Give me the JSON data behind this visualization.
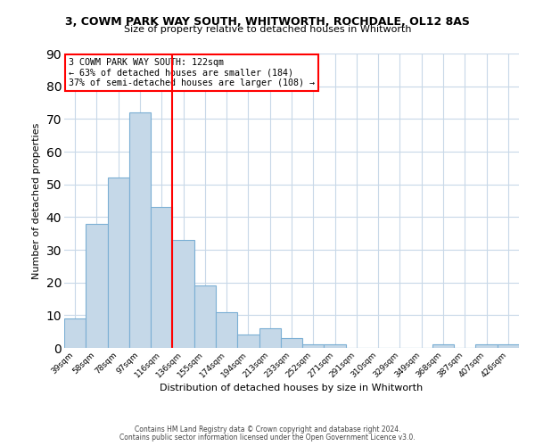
{
  "title": "3, COWM PARK WAY SOUTH, WHITWORTH, ROCHDALE, OL12 8AS",
  "subtitle": "Size of property relative to detached houses in Whitworth",
  "xlabel": "Distribution of detached houses by size in Whitworth",
  "ylabel": "Number of detached properties",
  "bar_labels": [
    "39sqm",
    "58sqm",
    "78sqm",
    "97sqm",
    "116sqm",
    "136sqm",
    "155sqm",
    "174sqm",
    "194sqm",
    "213sqm",
    "233sqm",
    "252sqm",
    "271sqm",
    "291sqm",
    "310sqm",
    "329sqm",
    "349sqm",
    "368sqm",
    "387sqm",
    "407sqm",
    "426sqm"
  ],
  "bar_values": [
    9,
    38,
    52,
    72,
    43,
    33,
    19,
    11,
    4,
    6,
    3,
    1,
    1,
    0,
    0,
    0,
    0,
    1,
    0,
    1,
    1
  ],
  "bar_color": "#c5d8e8",
  "bar_edge_color": "#7bafd4",
  "vline_x": 4.5,
  "vline_color": "red",
  "annotation_title": "3 COWM PARK WAY SOUTH: 122sqm",
  "annotation_line1": "← 63% of detached houses are smaller (184)",
  "annotation_line2": "37% of semi-detached houses are larger (108) →",
  "annotation_box_color": "white",
  "annotation_box_edge": "red",
  "ylim": [
    0,
    90
  ],
  "yticks": [
    0,
    10,
    20,
    30,
    40,
    50,
    60,
    70,
    80,
    90
  ],
  "footer1": "Contains HM Land Registry data © Crown copyright and database right 2024.",
  "footer2": "Contains public sector information licensed under the Open Government Licence v3.0.",
  "bg_color": "white",
  "grid_color": "#c8d8e8"
}
